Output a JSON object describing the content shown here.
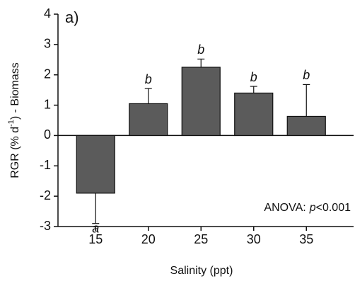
{
  "chart_data": {
    "type": "bar",
    "panel_label": "a)",
    "x_label": "Salinity (ppt)",
    "y_label": {
      "parts": [
        "RGR (% d",
        "-1",
        ") - Biomass"
      ]
    },
    "categories": [
      "15",
      "20",
      "25",
      "30",
      "35"
    ],
    "values": [
      -1.9,
      1.05,
      2.25,
      1.4,
      0.63
    ],
    "errors": [
      1.0,
      0.5,
      0.27,
      0.22,
      1.05
    ],
    "letters": [
      "a",
      "b",
      "b",
      "b",
      "b"
    ],
    "annotation": {
      "parts": [
        "ANOVA:",
        "p",
        "<0.001"
      ]
    },
    "color": "#5b5b5b",
    "ylim": [
      -3,
      4
    ],
    "yticks": [
      -3,
      -2,
      -1,
      0,
      1,
      2,
      3,
      4
    ]
  }
}
